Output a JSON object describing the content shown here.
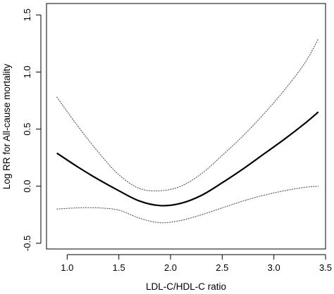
{
  "chart_data": {
    "type": "line",
    "title": "",
    "xlabel": "LDL-C/HDL-C ratio",
    "ylabel": "Log RR for All-cause mortality",
    "xlim": [
      0.8,
      3.5
    ],
    "ylim": [
      -0.55,
      1.6
    ],
    "grid": false,
    "legend": "none",
    "x_ticks": [
      1.0,
      1.5,
      2.0,
      2.5,
      3.0,
      3.5
    ],
    "x_tick_labels": [
      "1.0",
      "1.5",
      "2.0",
      "2.5",
      "3.0",
      "3.5"
    ],
    "y_ticks": [
      -0.5,
      0.0,
      0.5,
      1.0,
      1.5
    ],
    "y_tick_labels": [
      "-0.5",
      "0.0",
      "0.5",
      "1.0",
      "1.5"
    ],
    "series": [
      {
        "style": "solid",
        "color": "#000000",
        "x": [
          0.9,
          1.1,
          1.3,
          1.5,
          1.7,
          1.9,
          2.1,
          2.3,
          2.5,
          2.7,
          2.9,
          3.1,
          3.3,
          3.43
        ],
        "y": [
          0.29,
          0.17,
          0.06,
          -0.04,
          -0.13,
          -0.17,
          -0.15,
          -0.08,
          0.03,
          0.15,
          0.28,
          0.41,
          0.55,
          0.65
        ]
      },
      {
        "style": "dotted",
        "color": "#555555",
        "x": [
          0.9,
          1.1,
          1.3,
          1.5,
          1.7,
          1.9,
          2.1,
          2.3,
          2.5,
          2.7,
          2.9,
          3.1,
          3.3,
          3.43
        ],
        "y": [
          0.78,
          0.53,
          0.3,
          0.1,
          -0.02,
          -0.04,
          0.0,
          0.11,
          0.27,
          0.44,
          0.63,
          0.84,
          1.08,
          1.29
        ]
      },
      {
        "style": "dotted",
        "color": "#555555",
        "x": [
          0.9,
          1.1,
          1.3,
          1.5,
          1.7,
          1.9,
          2.1,
          2.3,
          2.5,
          2.7,
          2.9,
          3.1,
          3.3,
          3.43
        ],
        "y": [
          -0.2,
          -0.19,
          -0.19,
          -0.21,
          -0.28,
          -0.32,
          -0.3,
          -0.25,
          -0.19,
          -0.13,
          -0.08,
          -0.04,
          -0.01,
          0.0
        ]
      }
    ]
  }
}
